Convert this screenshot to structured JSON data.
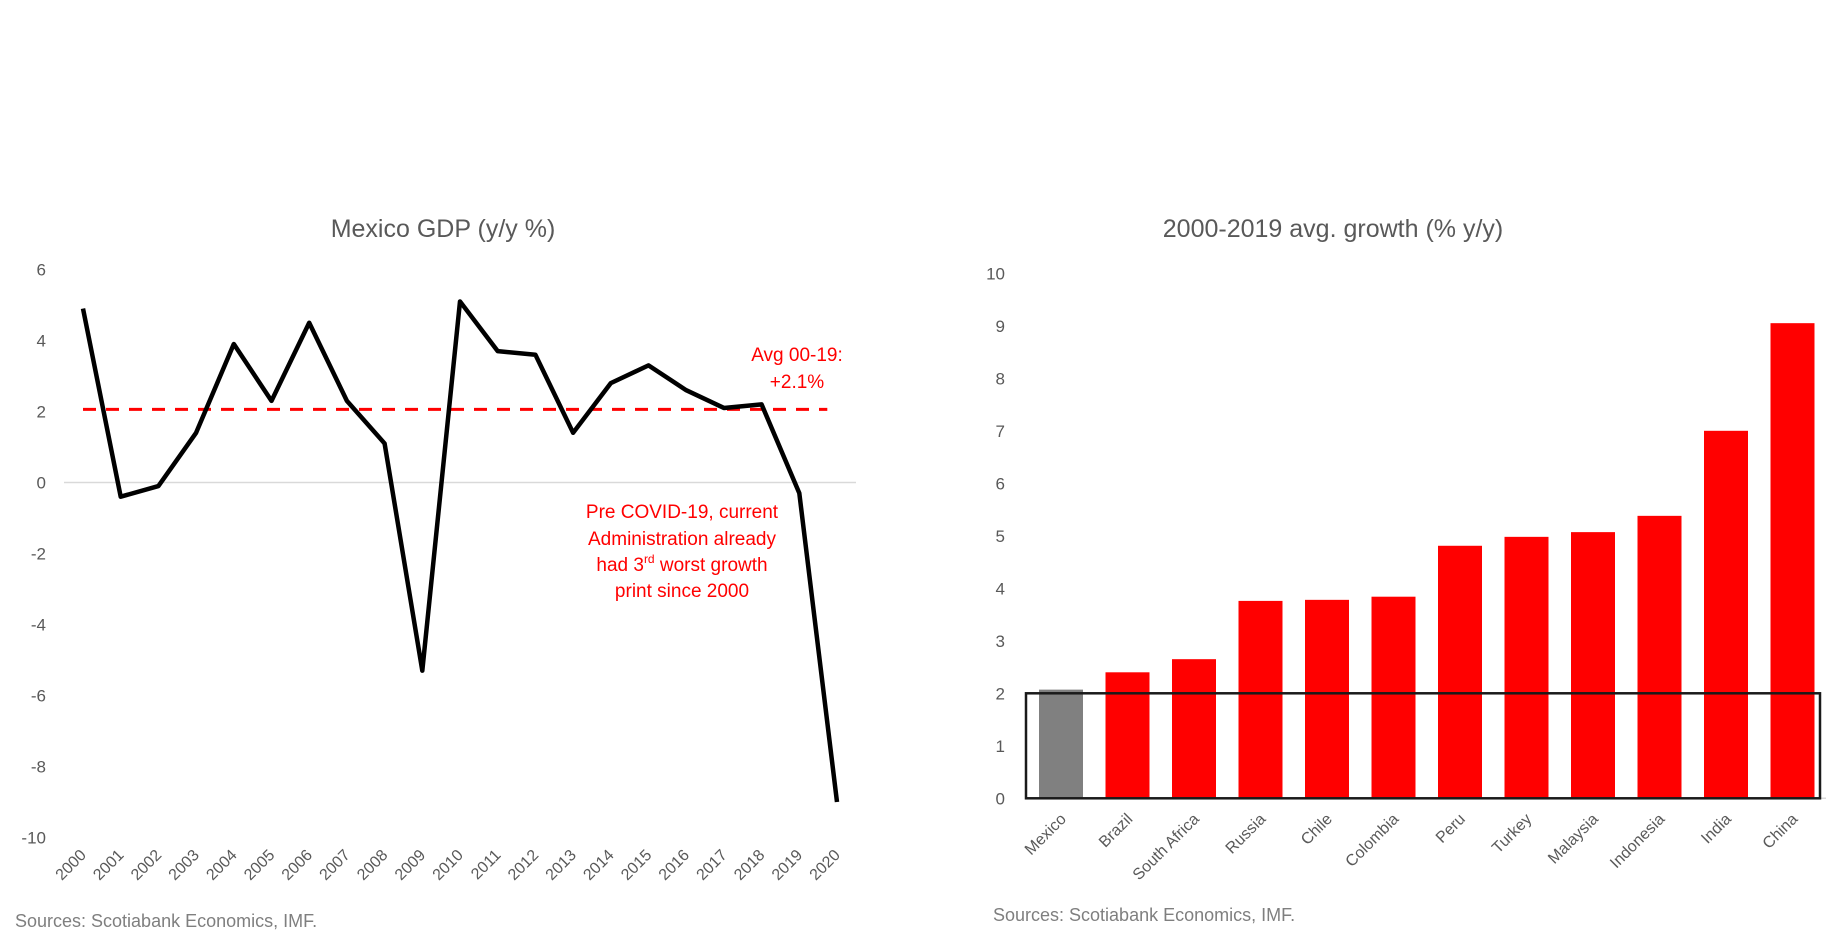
{
  "chart_data": [
    {
      "type": "line",
      "title": "Mexico GDP (y/y %)",
      "xlabel": "",
      "ylabel": "",
      "x": [
        "2000",
        "2001",
        "2002",
        "2003",
        "2004",
        "2005",
        "2006",
        "2007",
        "2008",
        "2009",
        "2010",
        "2011",
        "2012",
        "2013",
        "2014",
        "2015",
        "2016",
        "2017",
        "2018",
        "2019",
        "2020"
      ],
      "series": [
        {
          "name": "Mexico GDP y/y %",
          "color": "#000000",
          "values": [
            4.9,
            -0.4,
            -0.1,
            1.4,
            3.9,
            2.3,
            4.5,
            2.3,
            1.1,
            -5.3,
            5.1,
            3.7,
            3.6,
            1.4,
            2.8,
            3.3,
            2.6,
            2.1,
            2.2,
            -0.3,
            -9.0
          ]
        },
        {
          "name": "Avg 00-19",
          "color": "#ff0000",
          "style": "dashed",
          "values": [
            2.06,
            2.06,
            2.06,
            2.06,
            2.06,
            2.06,
            2.06,
            2.06,
            2.06,
            2.06,
            2.06,
            2.06,
            2.06,
            2.06,
            2.06,
            2.06,
            2.06,
            2.06,
            2.06,
            2.06
          ]
        }
      ],
      "ylim": [
        -10,
        6
      ],
      "yticks": [
        "6",
        "4",
        "2",
        "0",
        "-2",
        "-4",
        "-6",
        "-8",
        "-10"
      ],
      "ytick_values": [
        6,
        4,
        2,
        0,
        -2,
        -4,
        -6,
        -8,
        -10
      ],
      "zero_line": true,
      "grid": false,
      "annotations": [
        {
          "lines": [
            "Avg 00-19:",
            "+2.1%"
          ],
          "color": "#ff0000"
        },
        {
          "lines": [
            "Pre COVID-19, current",
            "Administration already",
            "had 3",
            "rd",
            " worst growth",
            "print since 2000"
          ],
          "color": "#ff0000"
        }
      ],
      "source": "Sources: Scotiabank Economics, IMF."
    },
    {
      "type": "bar",
      "title": "2000-2019 avg. growth (% y/y)",
      "xlabel": "",
      "ylabel": "",
      "categories": [
        "Mexico",
        "Brazil",
        "South Africa",
        "Russia",
        "Chile",
        "Colombia",
        "Peru",
        "Turkey",
        "Malaysia",
        "Indonesia",
        "India",
        "China"
      ],
      "values": [
        2.07,
        2.4,
        2.65,
        3.76,
        3.78,
        3.84,
        4.81,
        4.98,
        5.07,
        5.38,
        7.0,
        9.05
      ],
      "colors": [
        "#808080",
        "#ff0000",
        "#ff0000",
        "#ff0000",
        "#ff0000",
        "#ff0000",
        "#ff0000",
        "#ff0000",
        "#ff0000",
        "#ff0000",
        "#ff0000",
        "#ff0000"
      ],
      "ylim": [
        0,
        10
      ],
      "yticks": [
        "10",
        "9",
        "8",
        "7",
        "6",
        "5",
        "4",
        "3",
        "2",
        "1",
        "0"
      ],
      "ytick_values": [
        10,
        9,
        8,
        7,
        6,
        5,
        4,
        3,
        2,
        1,
        0
      ],
      "highlight_box": {
        "y_from": 0,
        "y_to": 2,
        "color": "#1a1a1a"
      },
      "grid": false,
      "source": "Sources: Scotiabank Economics, IMF."
    }
  ]
}
